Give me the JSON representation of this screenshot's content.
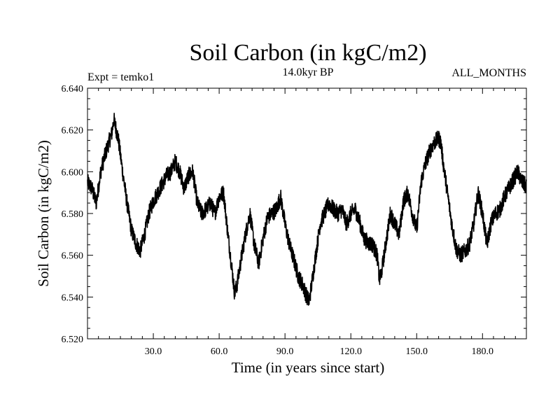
{
  "chart_data": {
    "type": "line",
    "title": "Soil Carbon (in kgC/m2)",
    "subtitle_left": "Expt = temko1",
    "subtitle_center": "14.0kyr BP",
    "subtitle_right": "ALL_MONTHS",
    "xlabel": "Time (in years since start)",
    "ylabel": "Soil Carbon (in kgC/m2)",
    "xlim": [
      0,
      200
    ],
    "ylim": [
      6.52,
      6.64
    ],
    "x_ticks": [
      30,
      60,
      90,
      120,
      150,
      180
    ],
    "x_tick_labels": [
      "30.0",
      "60.0",
      "90.0",
      "120.0",
      "150.0",
      "180.0"
    ],
    "y_ticks": [
      6.52,
      6.54,
      6.56,
      6.58,
      6.6,
      6.62,
      6.64
    ],
    "y_tick_labels": [
      "6.520",
      "6.540",
      "6.560",
      "6.580",
      "6.600",
      "6.620",
      "6.640"
    ],
    "noise_amplitude": 0.004,
    "series": [
      {
        "name": "Soil Carbon",
        "color": "#000000",
        "x": [
          0,
          2,
          4,
          6,
          8,
          10,
          11,
          12,
          14,
          16,
          18,
          20,
          22,
          24,
          26,
          28,
          30,
          32,
          34,
          36,
          38,
          40,
          42,
          44,
          46,
          48,
          50,
          52,
          54,
          56,
          58,
          60,
          62,
          64,
          66,
          67,
          68,
          70,
          72,
          74,
          76,
          78,
          80,
          82,
          84,
          86,
          88,
          90,
          92,
          94,
          96,
          98,
          100,
          101,
          102,
          104,
          106,
          108,
          110,
          112,
          114,
          116,
          118,
          120,
          122,
          124,
          126,
          128,
          130,
          132,
          133,
          134,
          136,
          138,
          140,
          142,
          144,
          146,
          148,
          150,
          152,
          154,
          156,
          158,
          160,
          161,
          162,
          164,
          166,
          168,
          170,
          172,
          174,
          176,
          178,
          180,
          182,
          184,
          186,
          188,
          190,
          192,
          194,
          196,
          198,
          200
        ],
        "values": [
          6.595,
          6.592,
          6.585,
          6.6,
          6.608,
          6.615,
          6.618,
          6.625,
          6.616,
          6.6,
          6.585,
          6.572,
          6.566,
          6.562,
          6.57,
          6.58,
          6.586,
          6.59,
          6.594,
          6.598,
          6.6,
          6.605,
          6.6,
          6.592,
          6.598,
          6.6,
          6.585,
          6.58,
          6.582,
          6.585,
          6.58,
          6.588,
          6.59,
          6.57,
          6.552,
          6.542,
          6.545,
          6.558,
          6.57,
          6.58,
          6.565,
          6.556,
          6.568,
          6.578,
          6.58,
          6.582,
          6.588,
          6.575,
          6.565,
          6.558,
          6.55,
          6.546,
          6.54,
          6.538,
          6.545,
          6.56,
          6.575,
          6.58,
          6.585,
          6.582,
          6.58,
          6.582,
          6.575,
          6.58,
          6.582,
          6.576,
          6.568,
          6.566,
          6.565,
          6.56,
          6.548,
          6.552,
          6.566,
          6.58,
          6.575,
          6.57,
          6.586,
          6.59,
          6.58,
          6.572,
          6.595,
          6.604,
          6.61,
          6.614,
          6.616,
          6.614,
          6.605,
          6.59,
          6.575,
          6.563,
          6.56,
          6.562,
          6.565,
          6.575,
          6.59,
          6.58,
          6.565,
          6.576,
          6.58,
          6.582,
          6.588,
          6.592,
          6.596,
          6.6,
          6.595,
          6.593
        ]
      }
    ]
  }
}
